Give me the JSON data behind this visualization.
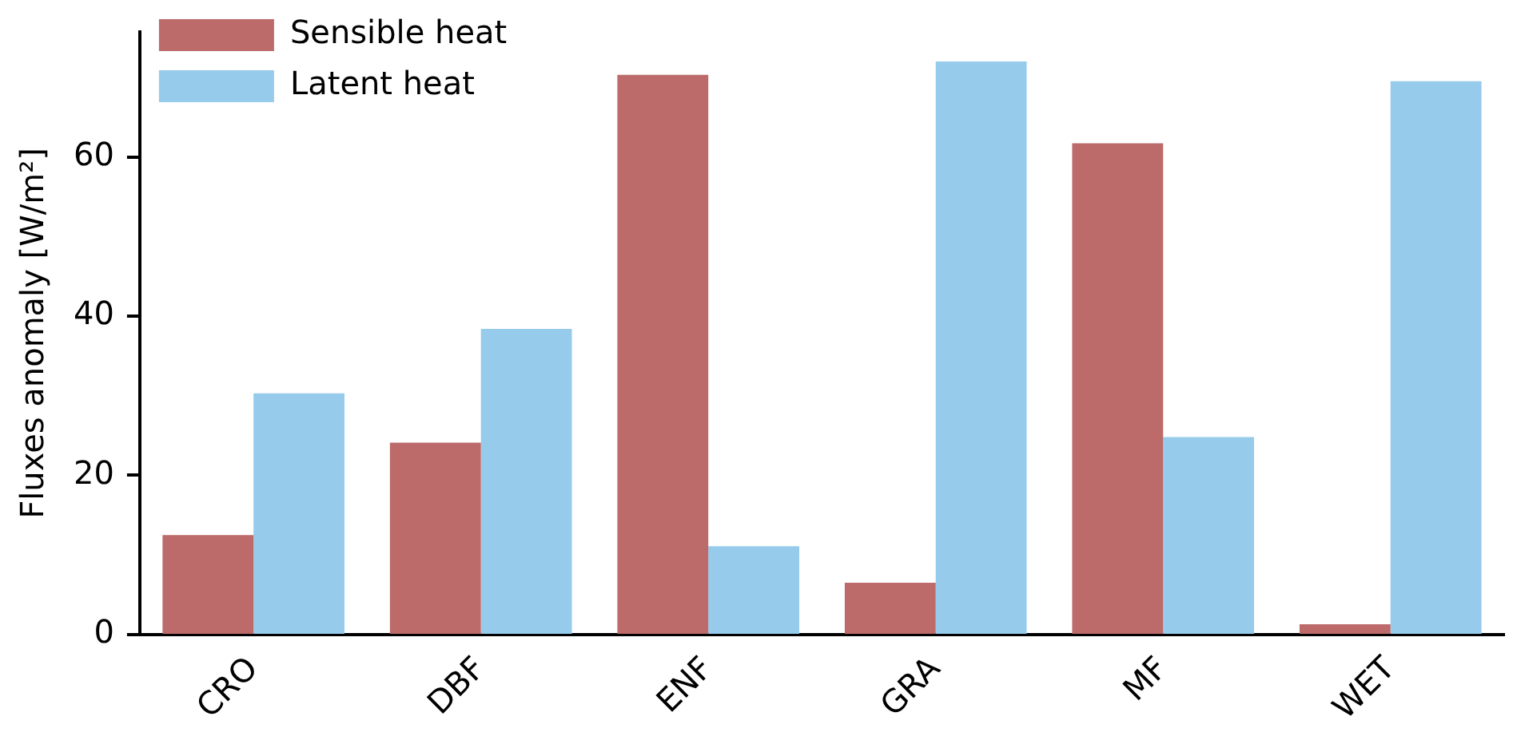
{
  "chart_data": {
    "type": "bar",
    "ylabel": "Fluxes anomaly [W/m²]",
    "categories": [
      "CRO",
      "DBF",
      "ENF",
      "GRA",
      "MF",
      "WET"
    ],
    "series": [
      {
        "name": "Sensible heat",
        "color": "#bc6a6a",
        "values": [
          12.5,
          24.1,
          70.3,
          6.5,
          61.7,
          1.3
        ]
      },
      {
        "name": "Latent heat",
        "color": "#96cbec",
        "values": [
          30.3,
          38.4,
          11.1,
          72,
          24.8,
          69.5
        ]
      }
    ],
    "ylim": [
      0,
      75.7
    ],
    "yticks": [
      0,
      20,
      40,
      60
    ],
    "grid": false,
    "legend": "top left"
  }
}
